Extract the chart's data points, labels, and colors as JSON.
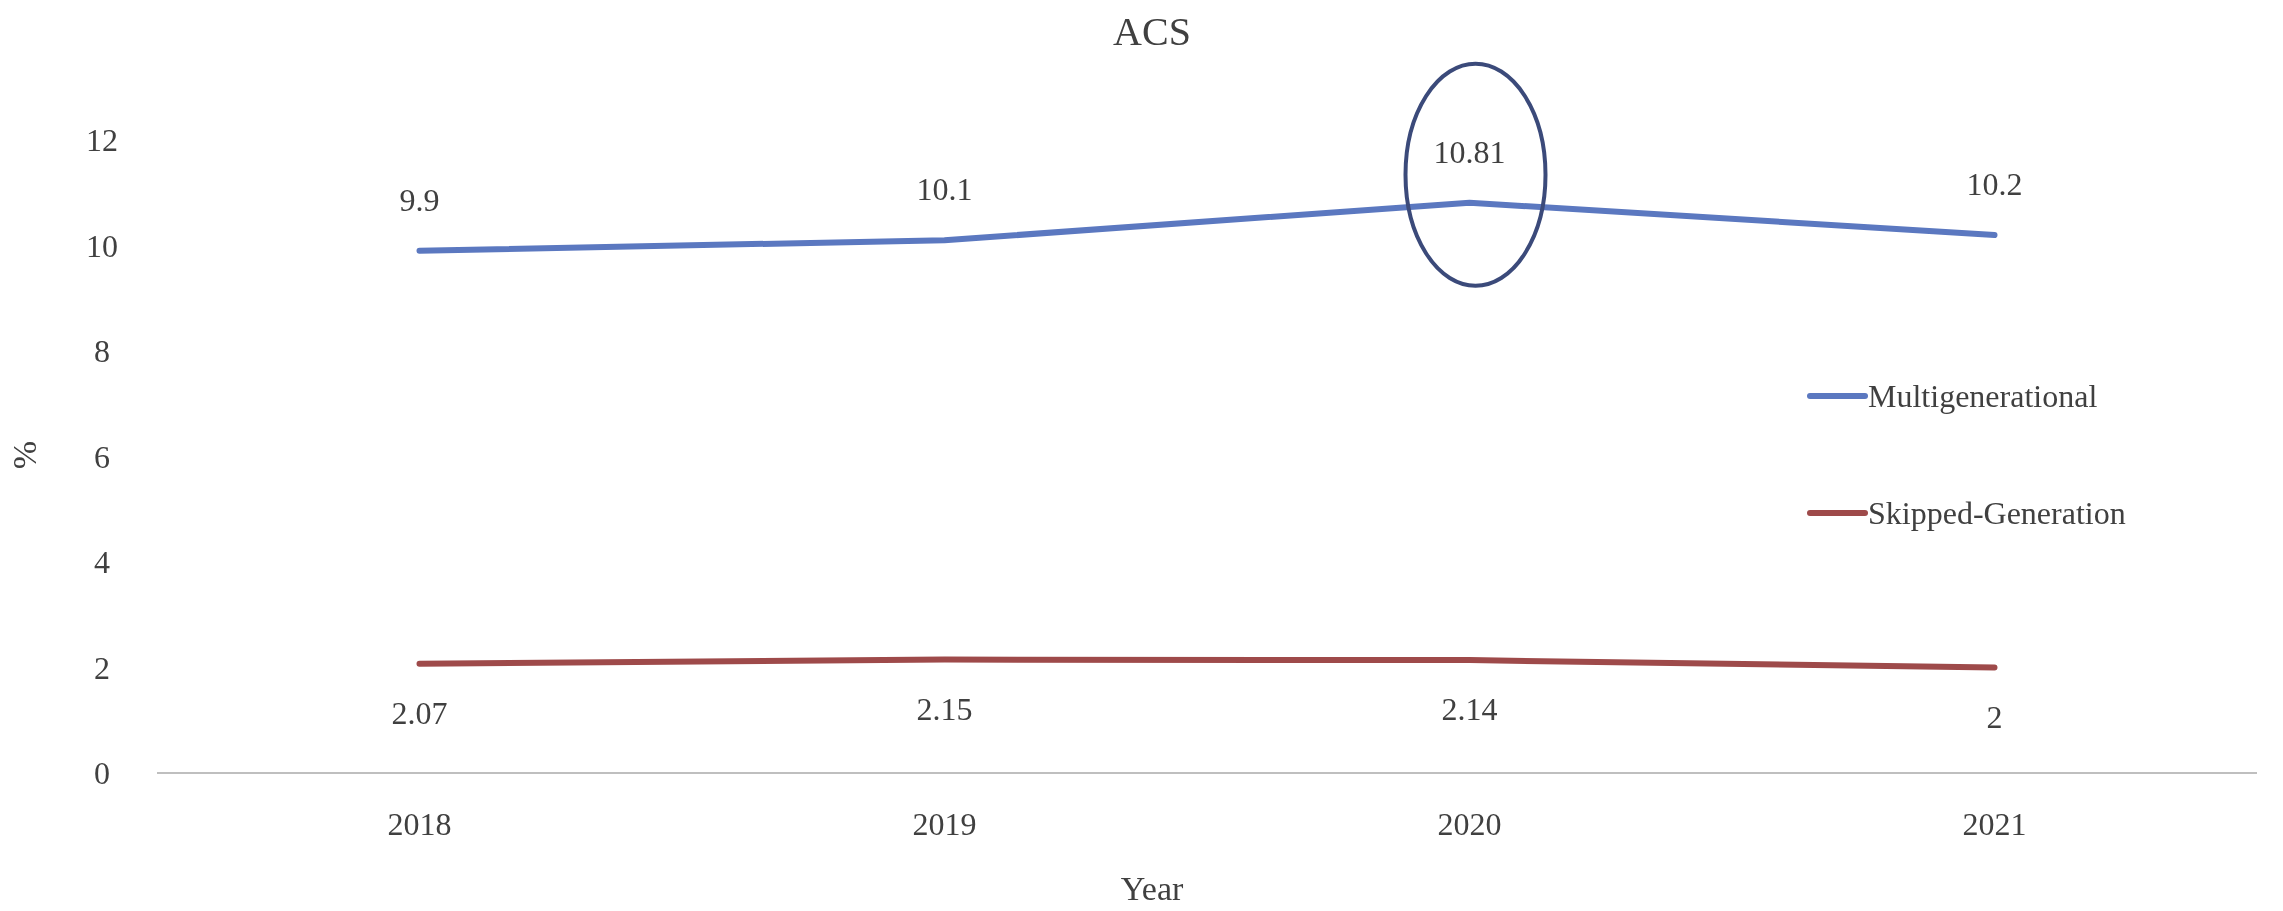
{
  "chart_data": {
    "type": "line",
    "title": "ACS",
    "xlabel": "Year",
    "ylabel": "%",
    "categories": [
      "2018",
      "2019",
      "2020",
      "2021"
    ],
    "series": [
      {
        "name": "Multigenerational",
        "color": "#5b78c0",
        "values": [
          9.9,
          10.1,
          10.81,
          10.2
        ]
      },
      {
        "name": "Skipped-Generation",
        "color": "#9e4a4a",
        "values": [
          2.07,
          2.15,
          2.14,
          2
        ]
      }
    ],
    "ylim": [
      0,
      12
    ],
    "yticks": [
      0,
      2,
      4,
      6,
      8,
      10,
      12
    ],
    "data_labels": true,
    "legend": "right",
    "grid": false,
    "marker": "none",
    "line_style": "solid"
  }
}
